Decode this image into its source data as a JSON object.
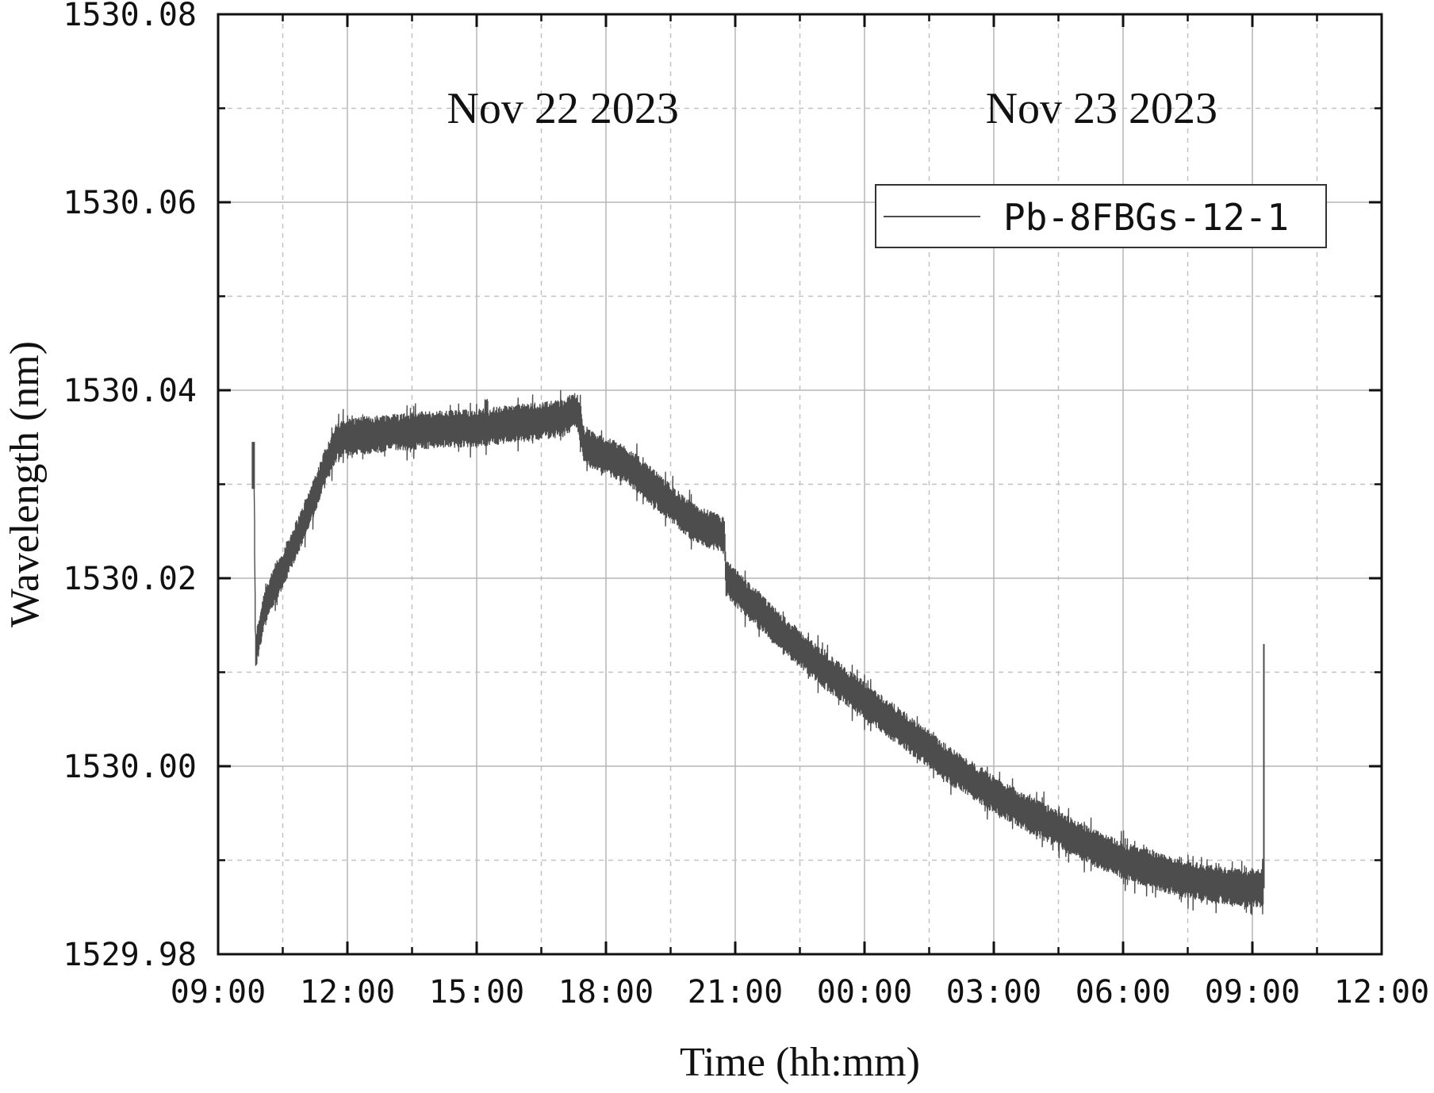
{
  "chart_data": {
    "type": "line",
    "title": "",
    "xlabel": "Time (hh:mm)",
    "ylabel": "Wavelength (nm)",
    "x_unit": "hh:mm",
    "x_ticks": [
      "09:00",
      "12:00",
      "15:00",
      "18:00",
      "21:00",
      "00:00",
      "03:00",
      "06:00",
      "09:00",
      "12:00"
    ],
    "xlim": [
      "2023-11-22 09:00",
      "2023-11-23 12:00"
    ],
    "ylim": [
      1529.98,
      1530.08
    ],
    "y_ticks": [
      "1529.98",
      "1530.00",
      "1530.02",
      "1530.04",
      "1530.06",
      "1530.08"
    ],
    "grid": true,
    "legend_position": "top-right",
    "annotations": [
      "Nov 22 2023",
      "Nov 23 2023"
    ],
    "series": [
      {
        "name": "Pb-8FBGs-12-1",
        "color": "#4d4d4d",
        "noise_amplitude_nm": 0.002,
        "x": [
          "2023-11-22 09:50",
          "2023-11-22 09:52",
          "2023-11-22 10:05",
          "2023-11-22 10:30",
          "2023-11-22 11:00",
          "2023-11-22 11:30",
          "2023-11-22 11:45",
          "2023-11-22 12:00",
          "2023-11-22 13:00",
          "2023-11-22 14:00",
          "2023-11-22 15:00",
          "2023-11-22 16:00",
          "2023-11-22 17:00",
          "2023-11-22 17:20",
          "2023-11-22 17:30",
          "2023-11-22 18:00",
          "2023-11-22 18:30",
          "2023-11-22 19:00",
          "2023-11-22 19:30",
          "2023-11-22 20:00",
          "2023-11-22 20:45",
          "2023-11-22 20:47",
          "2023-11-22 21:00",
          "2023-11-22 22:00",
          "2023-11-22 23:00",
          "2023-11-23 00:00",
          "2023-11-23 01:00",
          "2023-11-23 02:00",
          "2023-11-23 03:00",
          "2023-11-23 04:00",
          "2023-11-23 05:00",
          "2023-11-23 06:00",
          "2023-11-23 07:00",
          "2023-11-23 08:00",
          "2023-11-23 08:55",
          "2023-11-23 09:15"
        ],
        "y": [
          1530.032,
          1530.012,
          1530.017,
          1530.021,
          1530.026,
          1530.032,
          1530.0345,
          1530.035,
          1530.0355,
          1530.0358,
          1530.036,
          1530.0365,
          1530.037,
          1530.038,
          1530.034,
          1530.033,
          1530.032,
          1530.03,
          1530.028,
          1530.026,
          1530.0245,
          1530.02,
          1530.019,
          1530.0145,
          1530.0105,
          1530.007,
          1530.0035,
          1530.0,
          1529.997,
          1529.9945,
          1529.992,
          1529.99,
          1529.9885,
          1529.9875,
          1529.987,
          1529.987
        ]
      }
    ]
  }
}
